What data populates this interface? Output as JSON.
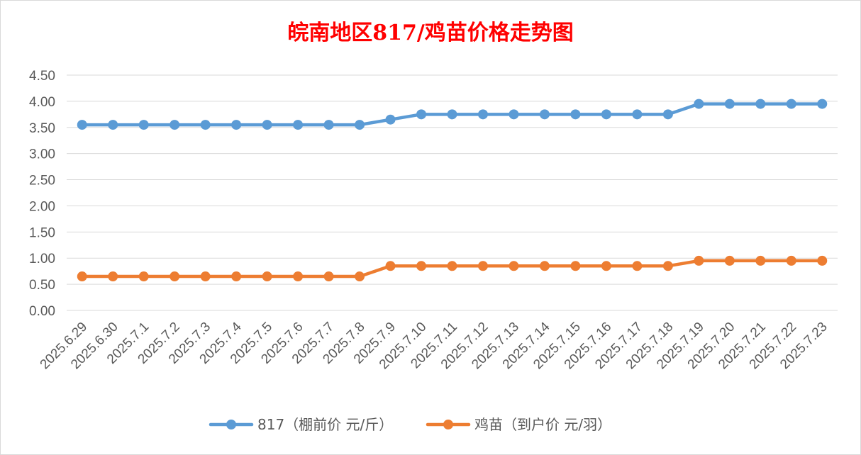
{
  "chart_data": {
    "type": "line",
    "title": "皖南地区817/鸡苗价格走势图",
    "xlabel": "",
    "ylabel": "",
    "x": [
      "2025.6.29",
      "2025.6.30",
      "2025.7.1",
      "2025.7.2",
      "2025.7.3",
      "2025.7.4",
      "2025.7.5",
      "2025.7.6",
      "2025.7.7",
      "2025.7.8",
      "2025.7.9",
      "2025.7.10",
      "2025.7.11",
      "2025.7.12",
      "2025.7.13",
      "2025.7.14",
      "2025.7.15",
      "2025.7.16",
      "2025.7.17",
      "2025.7.18",
      "2025.7.19",
      "2025.7.20",
      "2025.7.21",
      "2025.7.22",
      "2025.7.23"
    ],
    "ylim": [
      0,
      4.5
    ],
    "yticks": [
      "0.00",
      "0.50",
      "1.00",
      "1.50",
      "2.00",
      "2.50",
      "3.00",
      "3.50",
      "4.00",
      "4.50"
    ],
    "grid": true,
    "legend_position": "bottom",
    "series": [
      {
        "name": "817（棚前价 元/斤）",
        "color": "#5b9bd5",
        "values": [
          3.55,
          3.55,
          3.55,
          3.55,
          3.55,
          3.55,
          3.55,
          3.55,
          3.55,
          3.55,
          3.65,
          3.75,
          3.75,
          3.75,
          3.75,
          3.75,
          3.75,
          3.75,
          3.75,
          3.75,
          3.95,
          3.95,
          3.95,
          3.95,
          3.95
        ]
      },
      {
        "name": "鸡苗（到户价 元/羽）",
        "color": "#ed7d31",
        "values": [
          0.65,
          0.65,
          0.65,
          0.65,
          0.65,
          0.65,
          0.65,
          0.65,
          0.65,
          0.65,
          0.85,
          0.85,
          0.85,
          0.85,
          0.85,
          0.85,
          0.85,
          0.85,
          0.85,
          0.85,
          0.95,
          0.95,
          0.95,
          0.95,
          0.95
        ]
      }
    ]
  }
}
